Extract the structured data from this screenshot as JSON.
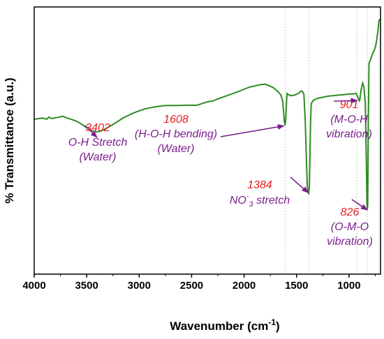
{
  "chart_data": {
    "type": "line",
    "xlabel": "Wavenumber (cm",
    "xlabel_sup": "-1",
    "xlabel_close": ")",
    "ylabel": "% Transmittance (a.u.)",
    "xlim": [
      4000,
      700
    ],
    "x_reversed": true,
    "x_ticks": [
      "4000",
      "3500",
      "3000",
      "2500",
      "2000",
      "1500",
      "1000"
    ],
    "grid": false,
    "colors": {
      "line": "#2e8b22",
      "number": "#e8201e",
      "label": "#7b1f8c",
      "arrow": "#7b1f8c",
      "marker": "#cccccc"
    },
    "series": [
      {
        "values_note": "transmittance in arbitrary units (0 = bottom of frame, 100 = top of frame)",
        "points": [
          [
            4000,
            58
          ],
          [
            3920,
            58.4
          ],
          [
            3880,
            58
          ],
          [
            3860,
            58.8
          ],
          [
            3830,
            58.2
          ],
          [
            3800,
            58.5
          ],
          [
            3760,
            58.8
          ],
          [
            3730,
            59.1
          ],
          [
            3700,
            58.6
          ],
          [
            3650,
            58
          ],
          [
            3600,
            57.3
          ],
          [
            3550,
            56.2
          ],
          [
            3500,
            54.8
          ],
          [
            3460,
            53.8
          ],
          [
            3430,
            53.4
          ],
          [
            3402,
            53.3
          ],
          [
            3370,
            53.5
          ],
          [
            3330,
            54.2
          ],
          [
            3250,
            56
          ],
          [
            3150,
            58.5
          ],
          [
            3050,
            60.4
          ],
          [
            2950,
            61.8
          ],
          [
            2850,
            62.6
          ],
          [
            2750,
            63.1
          ],
          [
            2650,
            63.1
          ],
          [
            2550,
            63.2
          ],
          [
            2450,
            63.2
          ],
          [
            2350,
            64.5
          ],
          [
            2300,
            64.8
          ],
          [
            2250,
            65.6
          ],
          [
            2150,
            67
          ],
          [
            2050,
            68.4
          ],
          [
            1950,
            70
          ],
          [
            1850,
            70.9
          ],
          [
            1800,
            71.1
          ],
          [
            1780,
            70.8
          ],
          [
            1720,
            69.8
          ],
          [
            1680,
            68.4
          ],
          [
            1650,
            67.1
          ],
          [
            1632,
            64.8
          ],
          [
            1622,
            60
          ],
          [
            1616,
            57
          ],
          [
            1608,
            55.7
          ],
          [
            1602,
            58.5
          ],
          [
            1595,
            65
          ],
          [
            1590,
            67.6
          ],
          [
            1560,
            66.8
          ],
          [
            1520,
            67
          ],
          [
            1480,
            67.7
          ],
          [
            1455,
            68.6
          ],
          [
            1440,
            68.2
          ],
          [
            1430,
            67.3
          ],
          [
            1418,
            58
          ],
          [
            1408,
            45
          ],
          [
            1398,
            33
          ],
          [
            1390,
            30.6
          ],
          [
            1384,
            30.2
          ],
          [
            1378,
            33
          ],
          [
            1372,
            45
          ],
          [
            1366,
            58
          ],
          [
            1360,
            63.8
          ],
          [
            1340,
            65.1
          ],
          [
            1300,
            65.8
          ],
          [
            1200,
            66.6
          ],
          [
            1100,
            67
          ],
          [
            1000,
            67.4
          ],
          [
            960,
            67.5
          ],
          [
            930,
            67.6
          ],
          [
            905,
            65.2
          ],
          [
            901,
            64.6
          ],
          [
            895,
            66
          ],
          [
            885,
            69
          ],
          [
            870,
            71.5
          ],
          [
            858,
            70
          ],
          [
            845,
            64
          ],
          [
            835,
            42
          ],
          [
            829,
            26
          ],
          [
            826,
            24.2
          ],
          [
            822,
            26
          ],
          [
            816,
            58
          ],
          [
            810,
            79
          ],
          [
            795,
            80.2
          ],
          [
            785,
            81.4
          ],
          [
            770,
            83
          ],
          [
            760,
            83.7
          ],
          [
            745,
            85.6
          ],
          [
            735,
            88
          ],
          [
            722,
            91.8
          ],
          [
            715,
            95
          ],
          [
            700,
            95.5
          ]
        ]
      }
    ],
    "markers_x": [
      1608,
      1384,
      926,
      826
    ],
    "annotations": [
      {
        "number": "3402",
        "lines": [
          "O-H Stretch",
          "(Water)"
        ],
        "arrow_to": [
          3402,
          53.3
        ]
      },
      {
        "number": "1608",
        "lines": [
          "(H-O-H bending)",
          "(Water)"
        ],
        "arrow_to": [
          1620,
          55.5
        ]
      },
      {
        "number": "1384",
        "label_pre": "NO",
        "label_sup": "-",
        "label_sub": "3",
        "label_post": " stretch",
        "arrow_to": [
          1390,
          30.5
        ]
      },
      {
        "number": "901",
        "lines": [
          "(M-O-H",
          "vibration)"
        ],
        "arrow_to": [
          922,
          65
        ]
      },
      {
        "number": "826",
        "lines": [
          "(O-M-O",
          "vibration)"
        ],
        "arrow_to": [
          826,
          24
        ]
      }
    ]
  }
}
